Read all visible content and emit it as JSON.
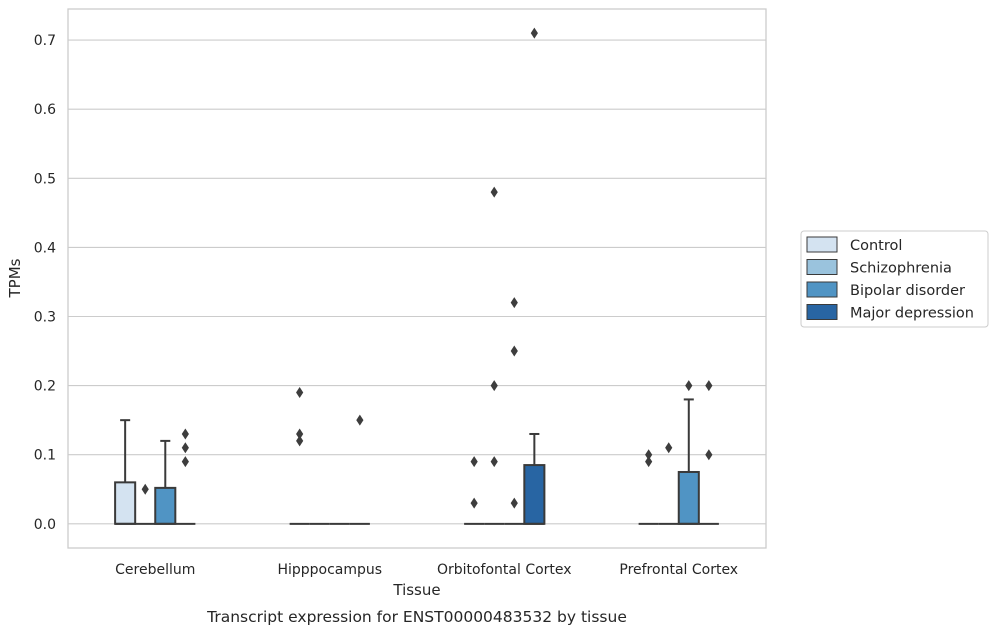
{
  "chart_data": {
    "type": "box",
    "xlabel": "Tissue",
    "ylabel": "TPMs",
    "caption": "Transcript expression for ENST00000483532 by tissue",
    "ylim": [
      -0.035,
      0.745
    ],
    "yticks": [
      "0.0",
      "0.1",
      "0.2",
      "0.3",
      "0.4",
      "0.5",
      "0.6",
      "0.7"
    ],
    "ytick_values": [
      0,
      0.1,
      0.2,
      0.3,
      0.4,
      0.5,
      0.6,
      0.7
    ],
    "grid": true,
    "legend_position": "right",
    "categories": [
      "Cerebellum",
      "Hipppocampus",
      "Orbitofontal Cortex",
      "Prefrontal Cortex"
    ],
    "series": [
      {
        "name": "Control",
        "color": "#d4e3f1",
        "boxes": [
          {
            "q1": 0,
            "median": 0,
            "q3": 0.06,
            "whisker_low": 0,
            "whisker_high": 0.15,
            "outliers": []
          },
          {
            "q1": 0,
            "median": 0,
            "q3": 0,
            "whisker_low": 0,
            "whisker_high": 0,
            "outliers": [
              0.19,
              0.13,
              0.12
            ]
          },
          {
            "q1": 0,
            "median": 0,
            "q3": 0,
            "whisker_low": 0,
            "whisker_high": 0,
            "outliers": [
              0.09,
              0.03
            ]
          },
          {
            "q1": 0,
            "median": 0,
            "q3": 0,
            "whisker_low": 0,
            "whisker_high": 0,
            "outliers": [
              0.1,
              0.09
            ]
          }
        ]
      },
      {
        "name": "Schizophrenia",
        "color": "#9ac3dd",
        "boxes": [
          {
            "q1": 0,
            "median": 0,
            "q3": 0,
            "whisker_low": 0,
            "whisker_high": 0,
            "outliers": [
              0.05
            ]
          },
          {
            "q1": 0,
            "median": 0,
            "q3": 0,
            "whisker_low": 0,
            "whisker_high": 0,
            "outliers": []
          },
          {
            "q1": 0,
            "median": 0,
            "q3": 0,
            "whisker_low": 0,
            "whisker_high": 0,
            "outliers": [
              0.48,
              0.2,
              0.09
            ]
          },
          {
            "q1": 0,
            "median": 0,
            "q3": 0,
            "whisker_low": 0,
            "whisker_high": 0,
            "outliers": [
              0.11
            ]
          }
        ]
      },
      {
        "name": "Bipolar disorder",
        "color": "#5094c4",
        "boxes": [
          {
            "q1": 0,
            "median": 0,
            "q3": 0.052,
            "whisker_low": 0,
            "whisker_high": 0.12,
            "outliers": []
          },
          {
            "q1": 0,
            "median": 0,
            "q3": 0,
            "whisker_low": 0,
            "whisker_high": 0,
            "outliers": []
          },
          {
            "q1": 0,
            "median": 0,
            "q3": 0,
            "whisker_low": 0,
            "whisker_high": 0,
            "outliers": [
              0.32,
              0.25,
              0.03
            ]
          },
          {
            "q1": 0,
            "median": 0,
            "q3": 0.075,
            "whisker_low": 0,
            "whisker_high": 0.18,
            "outliers": [
              0.2
            ]
          }
        ]
      },
      {
        "name": "Major depression",
        "color": "#2865a3",
        "boxes": [
          {
            "q1": 0,
            "median": 0,
            "q3": 0,
            "whisker_low": 0,
            "whisker_high": 0,
            "outliers": [
              0.13,
              0.11,
              0.09
            ]
          },
          {
            "q1": 0,
            "median": 0,
            "q3": 0,
            "whisker_low": 0,
            "whisker_high": 0,
            "outliers": [
              0.15
            ]
          },
          {
            "q1": 0,
            "median": 0,
            "q3": 0.085,
            "whisker_low": 0,
            "whisker_high": 0.13,
            "outliers": [
              0.71
            ]
          },
          {
            "q1": 0,
            "median": 0,
            "q3": 0,
            "whisker_low": 0,
            "whisker_high": 0,
            "outliers": [
              0.2,
              0.1
            ]
          }
        ]
      }
    ]
  }
}
